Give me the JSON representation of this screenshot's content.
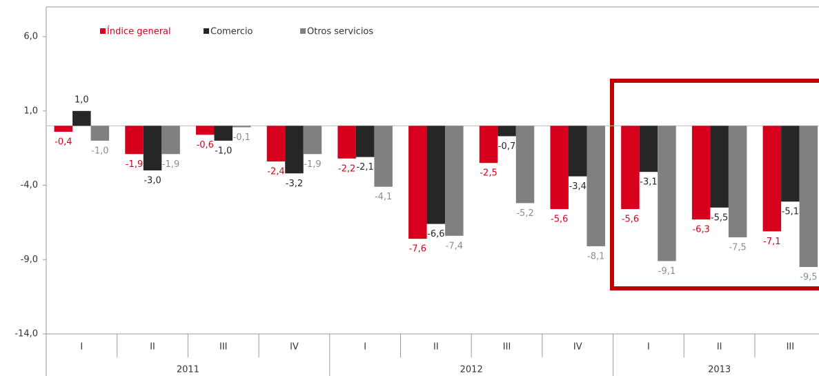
{
  "chart_data": {
    "type": "bar",
    "groups": [
      {
        "label": "2011",
        "categories": [
          "I",
          "II",
          "III",
          "IV"
        ]
      },
      {
        "label": "2012",
        "categories": [
          "I",
          "II",
          "III",
          "IV"
        ]
      },
      {
        "label": "2013",
        "categories": [
          "I",
          "II",
          "III"
        ]
      }
    ],
    "series": [
      {
        "name": "Índice general",
        "color": "#d7001c",
        "label_color": "#d7001c",
        "values": [
          -0.4,
          -1.9,
          -0.6,
          -2.4,
          -2.2,
          -7.6,
          -2.5,
          -5.6,
          -5.6,
          -6.3,
          -7.1
        ],
        "value_labels": [
          "-0,4",
          "-1,9",
          "-0,6",
          "-2,4",
          "-2,2",
          "-7,6",
          "-2,5",
          "-5,6",
          "-5,6",
          "-6,3",
          "-7,1"
        ]
      },
      {
        "name": "Comercio",
        "color": "#262626",
        "label_color": "#262626",
        "values": [
          1.0,
          -3.0,
          -1.0,
          -3.2,
          -2.1,
          -6.6,
          -0.7,
          -3.4,
          -3.1,
          -5.5,
          -5.1
        ],
        "value_labels": [
          "1,0",
          "-3,0",
          "-1,0",
          "-3,2",
          "-2,1",
          "-6,6",
          "-0,7",
          "-3,4",
          "-3,1",
          "-5,5",
          "-5,1"
        ]
      },
      {
        "name": "Otros servicios",
        "color": "#808080",
        "label_color": "#8c8c8c",
        "values": [
          -1.0,
          -1.9,
          -0.1,
          -1.9,
          -4.1,
          -7.4,
          -5.2,
          -8.1,
          -9.1,
          -7.5,
          -9.5
        ],
        "value_labels": [
          "-1,0",
          "-1,9",
          "-0,1",
          "-1,9",
          "-4,1",
          "-7,4",
          "-5,2",
          "-8,1",
          "-9,1",
          "-7,5",
          "-9,5"
        ]
      }
    ],
    "ylim": [
      -14,
      8
    ],
    "yticks": [
      {
        "value": -14,
        "label": "-14,0"
      },
      {
        "value": -9,
        "label": "-9,0"
      },
      {
        "value": -4,
        "label": "-4,0"
      },
      {
        "value": 1,
        "label": "1,0"
      },
      {
        "value": 6,
        "label": "6,0"
      }
    ],
    "legend": "top-left"
  }
}
